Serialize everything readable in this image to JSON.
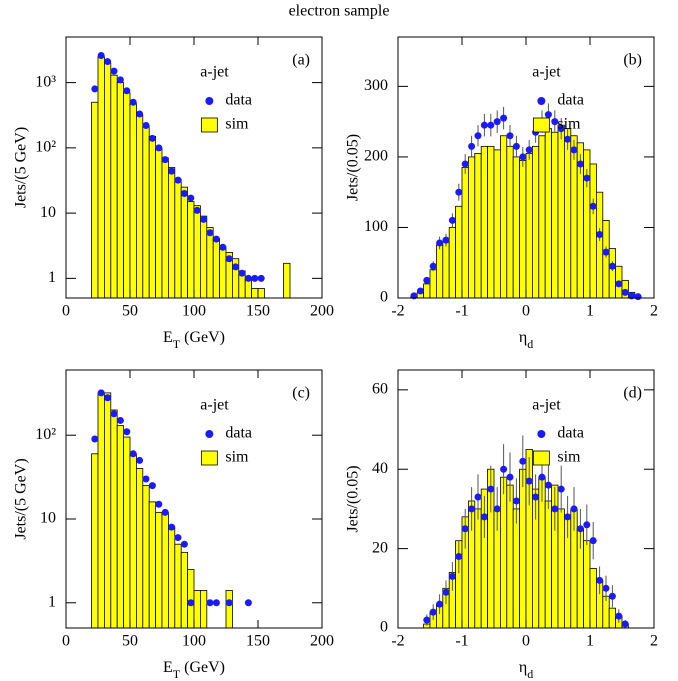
{
  "title": "electron sample",
  "chart_data": [
    {
      "type": "histogram",
      "panel_label": "(a)",
      "annotation": "a-jet",
      "xlabel": [
        "E",
        "T",
        " (GeV)"
      ],
      "ylabel": "Jets/(5 GeV)",
      "xlim": [
        0,
        200
      ],
      "xticks": [
        0,
        50,
        100,
        150,
        200
      ],
      "log_y": true,
      "ylim": [
        0.5,
        5000
      ],
      "yticks": [
        1,
        10,
        {
          "value": 100,
          "label": "10²"
        },
        {
          "value": 1000,
          "label": "10³"
        }
      ],
      "legend": "upper right",
      "hist": {
        "name": "sim",
        "color": "#ffff00",
        "bins": [
          20,
          25,
          30,
          35,
          40,
          45,
          50,
          55,
          60,
          65,
          70,
          75,
          80,
          85,
          90,
          95,
          100,
          105,
          110,
          115,
          120,
          125,
          130,
          135,
          140,
          145,
          150,
          155,
          160,
          165,
          170,
          175
        ],
        "counts": [
          500,
          2500,
          2000,
          1300,
          1000,
          700,
          480,
          320,
          220,
          150,
          100,
          70,
          50,
          33,
          25,
          15,
          13,
          9,
          6,
          4,
          3,
          2.5,
          2,
          1.3,
          1,
          0.7,
          0.7,
          0,
          0,
          0,
          1.7
        ]
      },
      "points": {
        "name": "data",
        "color": "#1a1aff",
        "x": [
          22.5,
          27.5,
          32.5,
          37.5,
          42.5,
          47.5,
          52.5,
          57.5,
          62.5,
          67.5,
          72.5,
          77.5,
          82.5,
          87.5,
          92.5,
          97.5,
          102.5,
          107.5,
          112.5,
          117.5,
          122.5,
          127.5,
          132.5,
          137.5,
          142.5,
          147.5,
          152.5
        ],
        "values": [
          800,
          2600,
          2100,
          1500,
          1100,
          750,
          500,
          330,
          220,
          140,
          100,
          66,
          44,
          32,
          20,
          17,
          11,
          8,
          5,
          4,
          3,
          2,
          1.5,
          1.2,
          1,
          1,
          1
        ]
      }
    },
    {
      "type": "histogram",
      "panel_label": "(b)",
      "annotation": "a-jet",
      "xlabel": [
        "η",
        "d",
        ""
      ],
      "ylabel": "Jets/(0.05)",
      "xlim": [
        -2,
        2
      ],
      "xticks": [
        -2,
        -1,
        0,
        1,
        2
      ],
      "log_y": false,
      "ylim": [
        0,
        370
      ],
      "yticks": [
        0,
        100,
        200,
        300
      ],
      "legend": "upper right",
      "hist": {
        "name": "sim",
        "color": "#ffff00",
        "bins": [
          -1.8,
          -1.7,
          -1.6,
          -1.5,
          -1.4,
          -1.3,
          -1.2,
          -1.1,
          -1.0,
          -0.9,
          -0.8,
          -0.7,
          -0.6,
          -0.5,
          -0.4,
          -0.3,
          -0.2,
          -0.1,
          0,
          0.1,
          0.2,
          0.3,
          0.4,
          0.5,
          0.6,
          0.7,
          0.8,
          0.9,
          1.0,
          1.1,
          1.2,
          1.3,
          1.4,
          1.5,
          1.6,
          1.7,
          1.8
        ],
        "counts": [
          3,
          8,
          20,
          40,
          75,
          80,
          100,
          130,
          185,
          200,
          205,
          215,
          215,
          210,
          230,
          215,
          200,
          195,
          205,
          215,
          230,
          240,
          235,
          245,
          240,
          230,
          220,
          210,
          190,
          150,
          110,
          70,
          45,
          25,
          8,
          2
        ]
      },
      "points": {
        "name": "data",
        "color": "#1a1aff",
        "x": [
          -1.75,
          -1.65,
          -1.55,
          -1.45,
          -1.35,
          -1.25,
          -1.15,
          -1.05,
          -0.95,
          -0.85,
          -0.75,
          -0.65,
          -0.55,
          -0.45,
          -0.35,
          -0.25,
          -0.15,
          -0.05,
          0.05,
          0.15,
          0.25,
          0.35,
          0.45,
          0.55,
          0.65,
          0.75,
          0.85,
          0.95,
          1.05,
          1.15,
          1.25,
          1.35,
          1.45,
          1.55,
          1.65,
          1.75
        ],
        "values": [
          3,
          10,
          25,
          45,
          78,
          82,
          110,
          150,
          190,
          215,
          230,
          245,
          245,
          250,
          255,
          230,
          215,
          200,
          210,
          235,
          250,
          260,
          250,
          240,
          225,
          210,
          190,
          170,
          130,
          90,
          65,
          45,
          20,
          8,
          3,
          2
        ],
        "errors": [
          2,
          3,
          5,
          7,
          9,
          9,
          10,
          12,
          14,
          15,
          15,
          16,
          16,
          16,
          16,
          15,
          15,
          14,
          14,
          15,
          16,
          16,
          16,
          15,
          15,
          14,
          14,
          13,
          11,
          9,
          8,
          7,
          4,
          3,
          2,
          1
        ]
      }
    },
    {
      "type": "histogram",
      "panel_label": "(c)",
      "annotation": "a-jet",
      "xlabel": [
        "E",
        "T",
        " (GeV)"
      ],
      "ylabel": "Jets/(5 GeV)",
      "xlim": [
        0,
        200
      ],
      "xticks": [
        0,
        50,
        100,
        150,
        200
      ],
      "log_y": true,
      "ylim": [
        0.5,
        600
      ],
      "yticks": [
        1,
        10,
        {
          "value": 100,
          "label": "10²"
        }
      ],
      "legend": "upper right",
      "hist": {
        "name": "sim",
        "color": "#ffff00",
        "bins": [
          20,
          25,
          30,
          35,
          40,
          45,
          50,
          55,
          60,
          65,
          70,
          75,
          80,
          85,
          90,
          95,
          100,
          105,
          110,
          115,
          120,
          125,
          130,
          135
        ],
        "counts": [
          60,
          320,
          320,
          200,
          130,
          95,
          60,
          40,
          25,
          16,
          12,
          12,
          8,
          5,
          4,
          2.5,
          1.4,
          1.4,
          0,
          0,
          0,
          1.4,
          0
        ]
      },
      "points": {
        "name": "data",
        "color": "#1a1aff",
        "x": [
          22.5,
          27.5,
          32.5,
          37.5,
          42.5,
          47.5,
          52.5,
          57.5,
          62.5,
          67.5,
          72.5,
          77.5,
          82.5,
          87.5,
          92.5,
          97.5,
          112.5,
          117.5,
          127.5,
          142.5
        ],
        "values": [
          90,
          320,
          280,
          180,
          150,
          110,
          60,
          50,
          30,
          25,
          15,
          12,
          8,
          6,
          5,
          1,
          1,
          1,
          1,
          1
        ]
      }
    },
    {
      "type": "histogram",
      "panel_label": "(d)",
      "annotation": "a-jet",
      "xlabel": [
        "η",
        "d",
        ""
      ],
      "ylabel": "Jets/(0.05)",
      "xlim": [
        -2,
        2
      ],
      "xticks": [
        -2,
        -1,
        0,
        1,
        2
      ],
      "log_y": false,
      "ylim": [
        0,
        65
      ],
      "yticks": [
        0,
        20,
        40,
        60
      ],
      "legend": "upper right",
      "hist": {
        "name": "sim",
        "color": "#ffff00",
        "bins": [
          -1.6,
          -1.5,
          -1.4,
          -1.3,
          -1.2,
          -1.1,
          -1.0,
          -0.9,
          -0.8,
          -0.7,
          -0.6,
          -0.5,
          -0.4,
          -0.3,
          -0.2,
          -0.1,
          0,
          0.1,
          0.2,
          0.3,
          0.4,
          0.5,
          0.6,
          0.7,
          0.8,
          0.9,
          1.0,
          1.1,
          1.2,
          1.3,
          1.4,
          1.5,
          1.6
        ],
        "counts": [
          1,
          4,
          6,
          10,
          14,
          22,
          28,
          32,
          30,
          35,
          40,
          30,
          38,
          36,
          30,
          40,
          45,
          35,
          38,
          32,
          36,
          30,
          28,
          30,
          25,
          22,
          15,
          12,
          8,
          5,
          3,
          1
        ]
      },
      "points": {
        "name": "data",
        "color": "#1a1aff",
        "x": [
          -1.55,
          -1.45,
          -1.35,
          -1.25,
          -1.15,
          -1.05,
          -0.95,
          -0.85,
          -0.75,
          -0.65,
          -0.55,
          -0.45,
          -0.35,
          -0.25,
          -0.15,
          -0.05,
          0.05,
          0.15,
          0.25,
          0.35,
          0.45,
          0.55,
          0.65,
          0.75,
          0.85,
          0.95,
          1.05,
          1.15,
          1.25,
          1.35,
          1.45,
          1.55
        ],
        "values": [
          2,
          4,
          6,
          9,
          13,
          18,
          25,
          30,
          33,
          28,
          35,
          30,
          40,
          38,
          32,
          42,
          37,
          33,
          38,
          36,
          30,
          35,
          28,
          30,
          25,
          26,
          22,
          12,
          10,
          8,
          3,
          1
        ],
        "errors": [
          1.4,
          2,
          2.5,
          3,
          3.6,
          4.2,
          5,
          5.5,
          5.7,
          5.3,
          5.9,
          5.5,
          6.3,
          6.2,
          5.7,
          6.5,
          6.1,
          5.7,
          6.2,
          6,
          5.5,
          5.9,
          5.3,
          5.5,
          5,
          5.1,
          4.7,
          3.5,
          3.2,
          2.8,
          1.7,
          1
        ]
      }
    }
  ]
}
